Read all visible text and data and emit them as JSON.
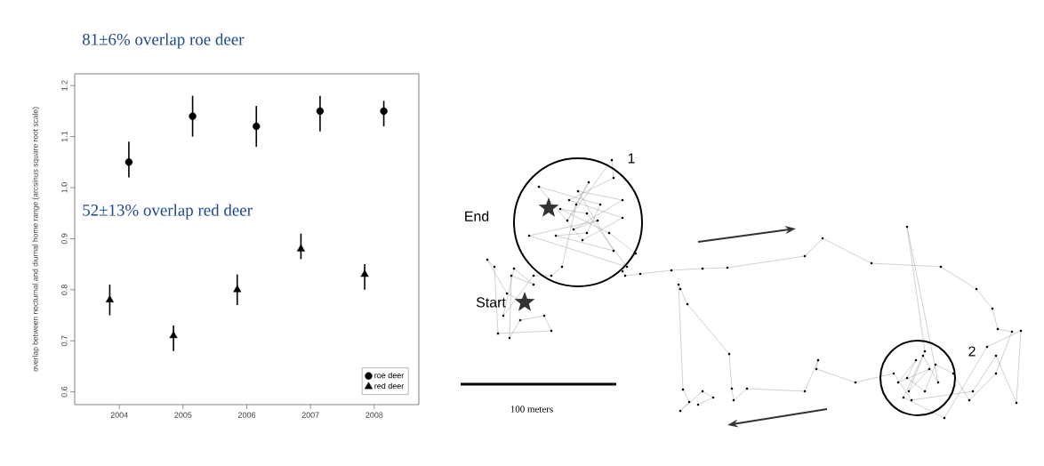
{
  "chart_data": [
    {
      "type": "scatter",
      "ylabel": "overlap between nocturnal and diurnal home range (arcsinus square root scale)",
      "annotations": [
        "81±6% overlap roe deer",
        "52±13% overlap red deer"
      ],
      "xlim": [
        2003.3,
        2008.7
      ],
      "ylim": [
        0.575,
        1.223
      ],
      "xticks": [
        2004,
        2005,
        2006,
        2007,
        2008
      ],
      "yticks": [
        0.6,
        0.7,
        0.8,
        0.9,
        {
          "value": 1,
          "label": "1.0"
        },
        1.1,
        1.2
      ],
      "legend": "bottom right",
      "series": [
        {
          "name": "roe deer",
          "color": "#000000",
          "marker": "circle",
          "x": [
            2004.15,
            2005.15,
            2006.15,
            2007.15,
            2008.15
          ],
          "values": [
            1.05,
            1.14,
            1.12,
            1.15,
            1.15
          ],
          "errors": [
            [
              1.02,
              1.09
            ],
            [
              1.1,
              1.18
            ],
            [
              1.08,
              1.16
            ],
            [
              1.11,
              1.18
            ],
            [
              1.12,
              1.17
            ]
          ]
        },
        {
          "name": "red deer",
          "color": "#000000",
          "marker": "triangle",
          "x": [
            2003.85,
            2004.85,
            2005.85,
            2006.85,
            2007.85
          ],
          "values": [
            0.78,
            0.71,
            0.8,
            0.88,
            0.83
          ],
          "errors": [
            [
              0.75,
              0.81
            ],
            [
              0.68,
              0.73
            ],
            [
              0.77,
              0.83
            ],
            [
              0.86,
              0.91
            ],
            [
              0.8,
              0.85
            ]
          ]
        }
      ]
    },
    {
      "type": "other",
      "annotations": [
        "1",
        "End",
        "Start",
        "2",
        "100 meters"
      ]
    }
  ]
}
